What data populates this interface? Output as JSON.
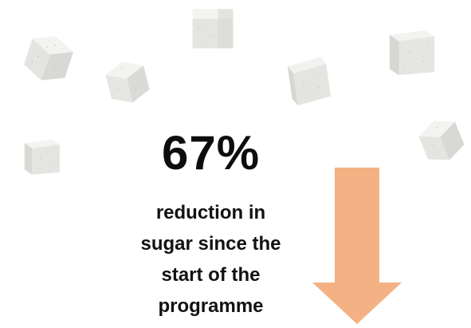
{
  "headline": {
    "value": "67%",
    "caption_lines": [
      "reduction in",
      "sugar since the",
      "start of the",
      "programme"
    ]
  },
  "arrow": {
    "direction": "down",
    "color": "#F4B183"
  },
  "decorations": {
    "icon": "sugar-cube-icon",
    "count": 8,
    "colors": {
      "top": "#F3F3F1",
      "left": "#E4E4E1",
      "right": "#D8D8D5",
      "speckle": "#C7C7C3"
    }
  }
}
